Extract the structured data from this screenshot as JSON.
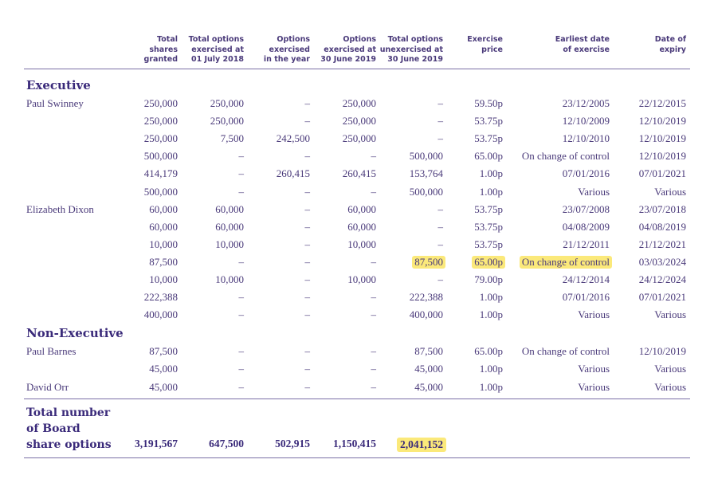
{
  "headers": [
    "Total\nshares\ngranted",
    "Total options\nexercised at\n01 July 2018",
    "Options\nexercised\nin the year",
    "Options\nexercised at\n30 June 2019",
    "Total options\nunexercised at\n30 June 2019",
    "Exercise\nprice",
    "Earliest date\nof exercise",
    "Date of\nexpiry"
  ],
  "sections": [
    {
      "title": "Executive",
      "people": [
        {
          "name": "Paul Swinney",
          "rows": [
            [
              "250,000",
              "250,000",
              "–",
              "250,000",
              "–",
              "59.50p",
              "23/12/2005",
              "22/12/2015"
            ],
            [
              "250,000",
              "250,000",
              "–",
              "250,000",
              "–",
              "53.75p",
              "12/10/2009",
              "12/10/2019"
            ],
            [
              "250,000",
              "7,500",
              "242,500",
              "250,000",
              "–",
              "53.75p",
              "12/10/2010",
              "12/10/2019"
            ],
            [
              "500,000",
              "–",
              "–",
              "–",
              "500,000",
              "65.00p",
              "On change of control",
              "12/10/2019"
            ],
            [
              "414,179",
              "–",
              "260,415",
              "260,415",
              "153,764",
              "1.00p",
              "07/01/2016",
              "07/01/2021"
            ],
            [
              "500,000",
              "–",
              "–",
              "–",
              "500,000",
              "1.00p",
              "Various",
              "Various"
            ]
          ]
        },
        {
          "name": "Elizabeth Dixon",
          "rows": [
            [
              "60,000",
              "60,000",
              "–",
              "60,000",
              "–",
              "53.75p",
              "23/07/2008",
              "23/07/2018"
            ],
            [
              "60,000",
              "60,000",
              "–",
              "60,000",
              "–",
              "53.75p",
              "04/08/2009",
              "04/08/2019"
            ],
            [
              "10,000",
              "10,000",
              "–",
              "10,000",
              "–",
              "53.75p",
              "21/12/2011",
              "21/12/2021"
            ],
            [
              "87,500",
              "–",
              "–",
              "–",
              "87,500",
              "65.00p",
              "On change of control",
              "03/03/2024"
            ],
            [
              "10,000",
              "10,000",
              "–",
              "10,000",
              "–",
              "79.00p",
              "24/12/2014",
              "24/12/2024"
            ],
            [
              "222,388",
              "–",
              "–",
              "–",
              "222,388",
              "1.00p",
              "07/01/2016",
              "07/01/2021"
            ],
            [
              "400,000",
              "–",
              "–",
              "–",
              "400,000",
              "1.00p",
              "Various",
              "Various"
            ]
          ]
        }
      ]
    },
    {
      "title": "Non-Executive",
      "people": [
        {
          "name": "Paul Barnes",
          "rows": [
            [
              "87,500",
              "–",
              "–",
              "–",
              "87,500",
              "65.00p",
              "On change of control",
              "12/10/2019"
            ],
            [
              "45,000",
              "–",
              "–",
              "–",
              "45,000",
              "1.00p",
              "Various",
              "Various"
            ]
          ]
        },
        {
          "name": "David Orr",
          "rows": [
            [
              "45,000",
              "–",
              "–",
              "–",
              "45,000",
              "1.00p",
              "Various",
              "Various"
            ]
          ]
        }
      ]
    }
  ],
  "total": {
    "label": "Total number\nof Board\nshare options",
    "values": [
      "3,191,567",
      "647,500",
      "502,915",
      "1,150,415",
      "2,041,152"
    ]
  },
  "highlight_color": "#fbe97a",
  "text_color": "#4a3a7a"
}
